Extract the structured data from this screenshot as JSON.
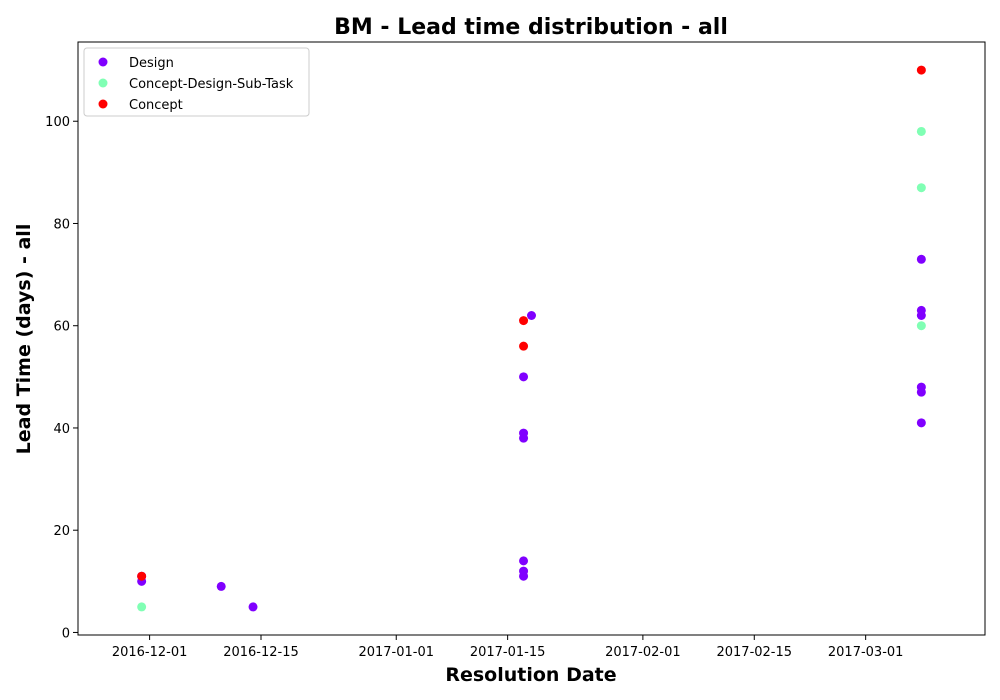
{
  "chart_data": {
    "type": "scatter",
    "title": "BM - Lead time distribution - all",
    "xlabel": "Resolution Date",
    "ylabel": "Lead Time (days) - all",
    "x_is_date": true,
    "xlim": [
      "2016-11-22",
      "2017-03-16"
    ],
    "ylim": [
      -0.5,
      115.5
    ],
    "x_ticks": [
      "2016-12-01",
      "2016-12-15",
      "2017-01-01",
      "2017-01-15",
      "2017-02-01",
      "2017-02-15",
      "2017-03-01"
    ],
    "y_ticks": [
      0,
      20,
      40,
      60,
      80,
      100
    ],
    "grid": false,
    "legend_position": "upper-left",
    "series": [
      {
        "name": "Design",
        "color": "#8000ff",
        "points": [
          {
            "x": "2016-11-30",
            "y": 10
          },
          {
            "x": "2016-11-30",
            "y": 11
          },
          {
            "x": "2016-12-10",
            "y": 9
          },
          {
            "x": "2016-12-14",
            "y": 5
          },
          {
            "x": "2017-01-17",
            "y": 11
          },
          {
            "x": "2017-01-17",
            "y": 12
          },
          {
            "x": "2017-01-17",
            "y": 14
          },
          {
            "x": "2017-01-17",
            "y": 38
          },
          {
            "x": "2017-01-17",
            "y": 39
          },
          {
            "x": "2017-01-17",
            "y": 50
          },
          {
            "x": "2017-01-18",
            "y": 62
          },
          {
            "x": "2017-03-08",
            "y": 41
          },
          {
            "x": "2017-03-08",
            "y": 47
          },
          {
            "x": "2017-03-08",
            "y": 48
          },
          {
            "x": "2017-03-08",
            "y": 62
          },
          {
            "x": "2017-03-08",
            "y": 63
          },
          {
            "x": "2017-03-08",
            "y": 73
          }
        ]
      },
      {
        "name": "Concept-Design-Sub-Task",
        "color": "#80ffb4",
        "points": [
          {
            "x": "2016-11-30",
            "y": 5
          },
          {
            "x": "2017-03-08",
            "y": 60
          },
          {
            "x": "2017-03-08",
            "y": 87
          },
          {
            "x": "2017-03-08",
            "y": 98
          }
        ]
      },
      {
        "name": "Concept",
        "color": "#ff0000",
        "points": [
          {
            "x": "2016-11-30",
            "y": 11
          },
          {
            "x": "2017-01-17",
            "y": 56
          },
          {
            "x": "2017-01-17",
            "y": 61
          },
          {
            "x": "2017-03-08",
            "y": 110
          }
        ]
      }
    ]
  }
}
